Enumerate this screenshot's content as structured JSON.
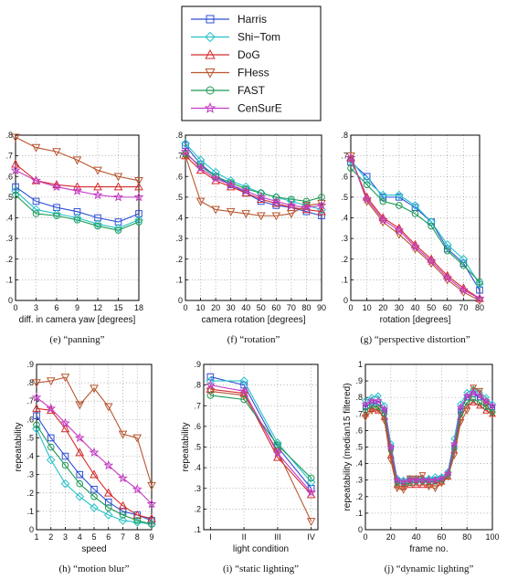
{
  "legend": {
    "entries": [
      {
        "name": "Harris",
        "color": "#2d4fd6",
        "marker": "square"
      },
      {
        "name": "Shi−Tom",
        "color": "#26c2c9",
        "marker": "diamond"
      },
      {
        "name": "DoG",
        "color": "#d62a2a",
        "marker": "triangle-up"
      },
      {
        "name": "FHess",
        "color": "#b8552e",
        "marker": "triangle-down"
      },
      {
        "name": "FAST",
        "color": "#1d9a55",
        "marker": "circle"
      },
      {
        "name": "CenSurE",
        "color": "#c43ac4",
        "marker": "star"
      }
    ]
  },
  "chart_data": [
    {
      "type": "line",
      "caption": "(e) “panning”",
      "xlabel": "diff. in camera yaw [degrees]",
      "ylabel": "",
      "x": [
        0,
        3,
        6,
        9,
        12,
        15,
        18
      ],
      "xlim": [
        0,
        18
      ],
      "ylim": [
        0,
        0.8
      ],
      "xticks": [
        0,
        3,
        6,
        9,
        12,
        15,
        18
      ],
      "xticklabels": [
        "0",
        "3",
        "6",
        "9",
        "12",
        "15",
        "18"
      ],
      "yticks": [
        0,
        0.1,
        0.2,
        0.3,
        0.4,
        0.5,
        0.6,
        0.7,
        0.8
      ],
      "yticklabels": [
        "0",
        ".1",
        ".2",
        ".3",
        ".4",
        ".5",
        ".6",
        ".7",
        ".8"
      ],
      "series": [
        {
          "name": "Harris",
          "values": [
            0.55,
            0.48,
            0.45,
            0.43,
            0.4,
            0.38,
            0.42
          ]
        },
        {
          "name": "Shi−Tom",
          "values": [
            0.53,
            0.44,
            0.42,
            0.4,
            0.37,
            0.35,
            0.39
          ]
        },
        {
          "name": "DoG",
          "values": [
            0.66,
            0.58,
            0.56,
            0.55,
            0.55,
            0.55,
            0.55
          ]
        },
        {
          "name": "FHess",
          "values": [
            0.79,
            0.74,
            0.72,
            0.68,
            0.63,
            0.6,
            0.58
          ]
        },
        {
          "name": "FAST",
          "values": [
            0.51,
            0.42,
            0.41,
            0.39,
            0.36,
            0.34,
            0.38
          ]
        },
        {
          "name": "CenSurE",
          "values": [
            0.63,
            0.58,
            0.55,
            0.53,
            0.51,
            0.5,
            0.5
          ]
        }
      ]
    },
    {
      "type": "line",
      "caption": "(f) “rotation”",
      "xlabel": "camera rotation [degrees]",
      "ylabel": "",
      "x": [
        0,
        10,
        20,
        30,
        40,
        50,
        60,
        70,
        80,
        90
      ],
      "xlim": [
        0,
        90
      ],
      "ylim": [
        0,
        0.8
      ],
      "xticks": [
        0,
        10,
        20,
        30,
        40,
        50,
        60,
        70,
        80,
        90
      ],
      "xticklabels": [
        "0",
        "10",
        "20",
        "30",
        "40",
        "50",
        "60",
        "70",
        "80",
        "90"
      ],
      "yticks": [
        0,
        0.1,
        0.2,
        0.3,
        0.4,
        0.5,
        0.6,
        0.7,
        0.8
      ],
      "yticklabels": [
        "0",
        ".1",
        ".2",
        ".3",
        ".4",
        ".5",
        ".6",
        ".7",
        ".8"
      ],
      "series": [
        {
          "name": "Harris",
          "values": [
            0.75,
            0.66,
            0.6,
            0.56,
            0.52,
            0.48,
            0.46,
            0.45,
            0.43,
            0.41
          ]
        },
        {
          "name": "Shi−Tom",
          "values": [
            0.76,
            0.68,
            0.62,
            0.58,
            0.55,
            0.52,
            0.5,
            0.48,
            0.46,
            0.44
          ]
        },
        {
          "name": "DoG",
          "values": [
            0.7,
            0.63,
            0.58,
            0.55,
            0.52,
            0.49,
            0.47,
            0.45,
            0.44,
            0.43
          ]
        },
        {
          "name": "FHess",
          "values": [
            0.7,
            0.48,
            0.44,
            0.43,
            0.42,
            0.41,
            0.41,
            0.42,
            0.46,
            0.47
          ]
        },
        {
          "name": "FAST",
          "values": [
            0.71,
            0.65,
            0.6,
            0.57,
            0.54,
            0.52,
            0.5,
            0.49,
            0.48,
            0.5
          ]
        },
        {
          "name": "CenSurE",
          "values": [
            0.72,
            0.64,
            0.59,
            0.56,
            0.53,
            0.5,
            0.48,
            0.46,
            0.45,
            0.46
          ]
        }
      ]
    },
    {
      "type": "line",
      "caption": "(g) “perspective distortion”",
      "xlabel": "rotation [degrees]",
      "ylabel": "",
      "x": [
        0,
        10,
        20,
        30,
        40,
        50,
        60,
        70,
        80
      ],
      "xlim": [
        0,
        80
      ],
      "ylim": [
        0,
        0.8
      ],
      "xticks": [
        0,
        10,
        20,
        30,
        40,
        50,
        60,
        70,
        80
      ],
      "xticklabels": [
        "0",
        "10",
        "20",
        "30",
        "40",
        "50",
        "60",
        "70",
        "80"
      ],
      "yticks": [
        0,
        0.1,
        0.2,
        0.3,
        0.4,
        0.5,
        0.6,
        0.7,
        0.8
      ],
      "yticklabels": [
        "0",
        ".1",
        ".2",
        ".3",
        ".4",
        ".5",
        ".6",
        ".7",
        ".8"
      ],
      "series": [
        {
          "name": "Harris",
          "values": [
            0.67,
            0.6,
            0.5,
            0.5,
            0.45,
            0.38,
            0.25,
            0.18,
            0.05
          ]
        },
        {
          "name": "Shi−Tom",
          "values": [
            0.68,
            0.58,
            0.51,
            0.51,
            0.46,
            0.38,
            0.27,
            0.2,
            0.08
          ]
        },
        {
          "name": "DoG",
          "values": [
            0.69,
            0.5,
            0.4,
            0.35,
            0.27,
            0.2,
            0.12,
            0.06,
            0.01
          ]
        },
        {
          "name": "FHess",
          "values": [
            0.7,
            0.48,
            0.38,
            0.32,
            0.25,
            0.18,
            0.1,
            0.04,
            0.0
          ]
        },
        {
          "name": "FAST",
          "values": [
            0.64,
            0.56,
            0.48,
            0.46,
            0.42,
            0.36,
            0.24,
            0.17,
            0.09
          ]
        },
        {
          "name": "CenSurE",
          "values": [
            0.69,
            0.49,
            0.39,
            0.34,
            0.26,
            0.19,
            0.11,
            0.05,
            0.01
          ]
        }
      ]
    },
    {
      "type": "line",
      "caption": "(h) “motion blur”",
      "xlabel": "speed",
      "ylabel": "repeatability",
      "x": [
        1,
        2,
        3,
        4,
        5,
        6,
        7,
        8,
        9
      ],
      "xlim": [
        1,
        9
      ],
      "ylim": [
        0,
        0.9
      ],
      "xticks": [
        1,
        2,
        3,
        4,
        5,
        6,
        7,
        8,
        9
      ],
      "xticklabels": [
        "1",
        "2",
        "3",
        "4",
        "5",
        "6",
        "7",
        "8",
        "9"
      ],
      "yticks": [
        0,
        0.1,
        0.2,
        0.3,
        0.4,
        0.5,
        0.6,
        0.7,
        0.8,
        0.9
      ],
      "yticklabels": [
        "0",
        ".1",
        ".2",
        ".3",
        ".4",
        ".5",
        ".6",
        ".7",
        ".8",
        ".9"
      ],
      "series": [
        {
          "name": "Harris",
          "values": [
            0.62,
            0.5,
            0.4,
            0.3,
            0.22,
            0.15,
            0.1,
            0.08,
            0.05
          ]
        },
        {
          "name": "Shi−Tom",
          "values": [
            0.55,
            0.38,
            0.25,
            0.18,
            0.12,
            0.08,
            0.05,
            0.04,
            0.03
          ]
        },
        {
          "name": "DoG",
          "values": [
            0.66,
            0.65,
            0.55,
            0.42,
            0.3,
            0.2,
            0.13,
            0.08,
            0.06
          ]
        },
        {
          "name": "FHess",
          "values": [
            0.8,
            0.81,
            0.83,
            0.68,
            0.77,
            0.67,
            0.52,
            0.5,
            0.24
          ]
        },
        {
          "name": "FAST",
          "values": [
            0.57,
            0.45,
            0.35,
            0.25,
            0.18,
            0.12,
            0.08,
            0.05,
            0.03
          ]
        },
        {
          "name": "CenSurE",
          "values": [
            0.72,
            0.66,
            0.58,
            0.5,
            0.42,
            0.35,
            0.28,
            0.22,
            0.14
          ]
        }
      ]
    },
    {
      "type": "line",
      "caption": "(i) “static lighting”",
      "xlabel": "light condition",
      "ylabel": "repeatability",
      "x": [
        1,
        2,
        3,
        4
      ],
      "xlim": [
        0.8,
        4.2
      ],
      "ylim": [
        0.1,
        0.9
      ],
      "xticks": [
        1,
        2,
        3,
        4
      ],
      "xticklabels": [
        "I",
        "II",
        "III",
        "IV"
      ],
      "yticks": [
        0.1,
        0.2,
        0.3,
        0.4,
        0.5,
        0.6,
        0.7,
        0.8,
        0.9
      ],
      "yticklabels": [
        ".1",
        ".2",
        ".3",
        ".4",
        ".5",
        ".6",
        ".7",
        ".8",
        ".9"
      ],
      "series": [
        {
          "name": "Harris",
          "values": [
            0.84,
            0.8,
            0.5,
            0.3
          ]
        },
        {
          "name": "Shi−Tom",
          "values": [
            0.82,
            0.82,
            0.52,
            0.33
          ]
        },
        {
          "name": "DoG",
          "values": [
            0.78,
            0.76,
            0.45,
            0.27
          ]
        },
        {
          "name": "FHess",
          "values": [
            0.77,
            0.75,
            0.48,
            0.14
          ]
        },
        {
          "name": "FAST",
          "values": [
            0.75,
            0.73,
            0.51,
            0.35
          ]
        },
        {
          "name": "CenSurE",
          "values": [
            0.8,
            0.77,
            0.47,
            0.28
          ]
        }
      ]
    },
    {
      "type": "line",
      "caption": "(j) “dynamic lighting”",
      "xlabel": "frame no.",
      "ylabel": "repeatability (median15 filtered)",
      "x": [
        0,
        5,
        10,
        15,
        20,
        25,
        30,
        35,
        40,
        45,
        50,
        55,
        60,
        65,
        70,
        75,
        80,
        85,
        90,
        95,
        100
      ],
      "xlim": [
        0,
        100
      ],
      "ylim": [
        0,
        1
      ],
      "xticks": [
        0,
        20,
        40,
        60,
        80,
        100
      ],
      "xticklabels": [
        "0",
        "20",
        "40",
        "60",
        "80",
        "100"
      ],
      "yticks": [
        0,
        0.1,
        0.2,
        0.3,
        0.4,
        0.5,
        0.6,
        0.7,
        0.8,
        0.9,
        1
      ],
      "yticklabels": [
        "0",
        ".1",
        ".2",
        ".3",
        ".4",
        ".5",
        ".6",
        ".7",
        ".8",
        ".9",
        "1"
      ],
      "series": [
        {
          "name": "Harris",
          "values": [
            0.74,
            0.77,
            0.76,
            0.72,
            0.5,
            0.3,
            0.29,
            0.3,
            0.3,
            0.3,
            0.3,
            0.3,
            0.31,
            0.34,
            0.5,
            0.72,
            0.8,
            0.82,
            0.8,
            0.77,
            0.74
          ]
        },
        {
          "name": "Shi−Tom",
          "values": [
            0.78,
            0.8,
            0.81,
            0.75,
            0.52,
            0.31,
            0.3,
            0.31,
            0.31,
            0.31,
            0.31,
            0.32,
            0.32,
            0.35,
            0.55,
            0.76,
            0.83,
            0.85,
            0.83,
            0.8,
            0.76
          ]
        },
        {
          "name": "DoG",
          "values": [
            0.7,
            0.73,
            0.72,
            0.68,
            0.45,
            0.27,
            0.26,
            0.27,
            0.27,
            0.27,
            0.27,
            0.28,
            0.29,
            0.32,
            0.48,
            0.68,
            0.75,
            0.77,
            0.75,
            0.72,
            0.7
          ]
        },
        {
          "name": "FHess",
          "values": [
            0.68,
            0.72,
            0.73,
            0.66,
            0.42,
            0.25,
            0.24,
            0.31,
            0.31,
            0.33,
            0.26,
            0.25,
            0.28,
            0.32,
            0.45,
            0.65,
            0.72,
            0.86,
            0.84,
            0.76,
            0.7
          ]
        },
        {
          "name": "FAST",
          "values": [
            0.72,
            0.75,
            0.74,
            0.7,
            0.48,
            0.28,
            0.28,
            0.28,
            0.29,
            0.29,
            0.29,
            0.29,
            0.3,
            0.33,
            0.49,
            0.7,
            0.77,
            0.79,
            0.77,
            0.74,
            0.71
          ]
        },
        {
          "name": "CenSurE",
          "values": [
            0.76,
            0.78,
            0.78,
            0.73,
            0.5,
            0.3,
            0.29,
            0.3,
            0.3,
            0.3,
            0.3,
            0.3,
            0.31,
            0.34,
            0.52,
            0.74,
            0.81,
            0.83,
            0.81,
            0.78,
            0.75
          ]
        }
      ]
    }
  ]
}
